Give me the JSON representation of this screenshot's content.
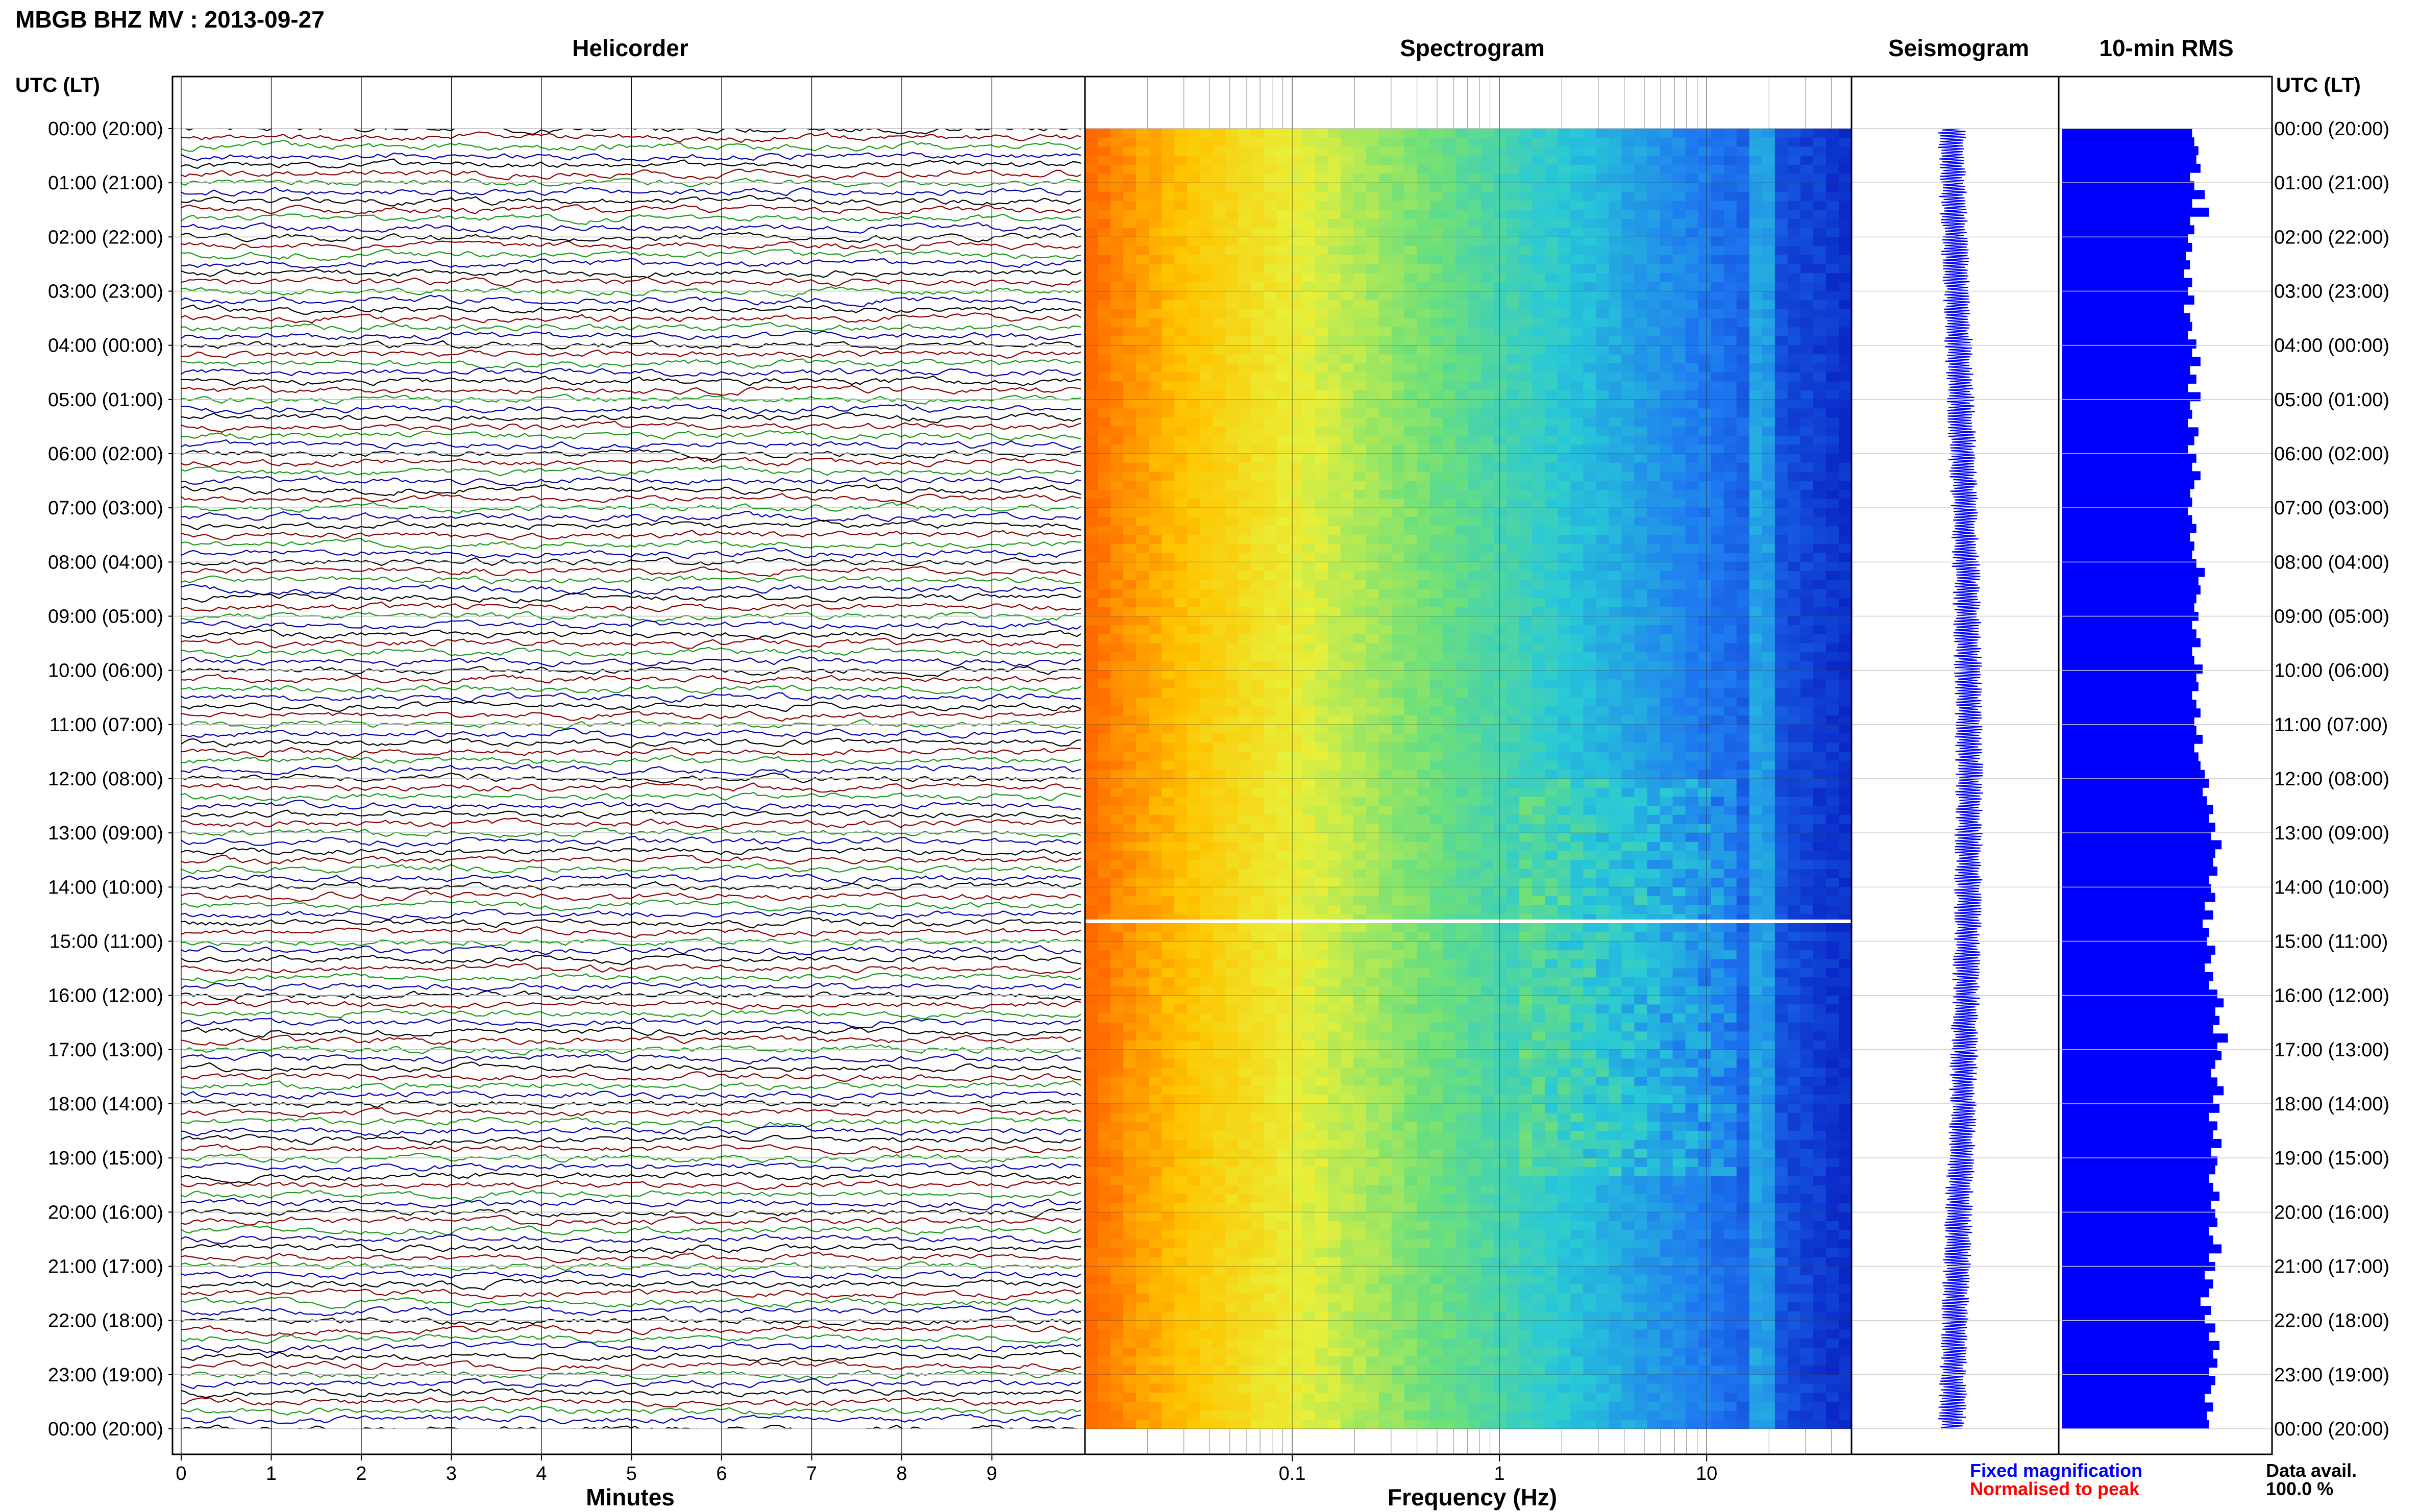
{
  "header": {
    "station": "MBGB BHZ MV : 2013-09-27",
    "utc_label_left": "UTC (LT)",
    "utc_label_right": "UTC (LT)"
  },
  "panels": {
    "helicorder_title": "Helicorder",
    "spectrogram_title": "Spectrogram",
    "seismogram_title": "Seismogram",
    "rms_title": "10-min RMS"
  },
  "footer": {
    "fixed_magnification": "Fixed magnification",
    "normalised_to_peak": "Normalised to peak",
    "data_avail_label": "Data avail.",
    "data_avail_value": "100.0 %"
  },
  "colors": {
    "trace_cycle": [
      "#000000",
      "#8b0000",
      "#1a9a1a",
      "#0000b4"
    ],
    "rms_bar": "#0000ff",
    "seismogram": "#0000ff",
    "fixed_magnification": "#0000ff",
    "normalised_to_peak": "#ff0000"
  },
  "chart_data": [
    {
      "type": "line",
      "title": "Helicorder",
      "xlabel": "Minutes",
      "ylabel": "UTC (LT)",
      "x_ticks": [
        "0",
        "1",
        "2",
        "3",
        "4",
        "5",
        "6",
        "7",
        "8",
        "9"
      ],
      "xlim": [
        0,
        10
      ],
      "rows_per_hour": 6,
      "hours": 24,
      "y_ticks": [
        "00:00 (20:00)",
        "01:00 (21:00)",
        "02:00 (22:00)",
        "03:00 (23:00)",
        "04:00 (00:00)",
        "05:00 (01:00)",
        "06:00 (02:00)",
        "07:00 (03:00)",
        "08:00 (04:00)",
        "09:00 (05:00)",
        "10:00 (06:00)",
        "11:00 (07:00)",
        "12:00 (08:00)",
        "13:00 (09:00)",
        "14:00 (10:00)",
        "15:00 (11:00)",
        "16:00 (12:00)",
        "17:00 (13:00)",
        "18:00 (14:00)",
        "19:00 (15:00)",
        "20:00 (16:00)",
        "21:00 (17:00)",
        "22:00 (18:00)",
        "23:00 (19:00)",
        "00:00 (20:00)"
      ]
    },
    {
      "type": "heatmap",
      "title": "Spectrogram",
      "xlabel": "Frequency (Hz)",
      "x_scale": "log",
      "xlim": [
        0.01,
        50
      ],
      "x_ticks": [
        "0.1",
        "1",
        "10"
      ],
      "colormap": [
        "#ff6a00",
        "#ffc400",
        "#e8f03a",
        "#6ee07a",
        "#28c8d8",
        "#1e78f0",
        "#0a28c8"
      ]
    },
    {
      "type": "line",
      "title": "Seismogram"
    },
    {
      "type": "bar",
      "title": "10-min RMS",
      "orientation": "horizontal",
      "values": [
        0.62,
        0.63,
        0.65,
        0.64,
        0.66,
        0.61,
        0.63,
        0.68,
        0.62,
        0.7,
        0.61,
        0.63,
        0.6,
        0.62,
        0.59,
        0.61,
        0.58,
        0.62,
        0.6,
        0.63,
        0.58,
        0.61,
        0.62,
        0.6,
        0.64,
        0.62,
        0.66,
        0.61,
        0.64,
        0.6,
        0.66,
        0.61,
        0.62,
        0.6,
        0.65,
        0.63,
        0.6,
        0.64,
        0.62,
        0.66,
        0.63,
        0.61,
        0.62,
        0.6,
        0.62,
        0.64,
        0.61,
        0.63,
        0.62,
        0.64,
        0.68,
        0.65,
        0.66,
        0.64,
        0.63,
        0.65,
        0.62,
        0.64,
        0.66,
        0.62,
        0.63,
        0.67,
        0.64,
        0.65,
        0.62,
        0.64,
        0.66,
        0.63,
        0.64,
        0.67,
        0.63,
        0.65,
        0.66,
        0.68,
        0.7,
        0.67,
        0.69,
        0.72,
        0.7,
        0.73,
        0.71,
        0.76,
        0.73,
        0.72,
        0.74,
        0.7,
        0.71,
        0.73,
        0.68,
        0.72,
        0.67,
        0.7,
        0.69,
        0.73,
        0.71,
        0.68,
        0.72,
        0.7,
        0.74,
        0.77,
        0.73,
        0.75,
        0.72,
        0.79,
        0.74,
        0.76,
        0.73,
        0.71,
        0.74,
        0.77,
        0.72,
        0.75,
        0.7,
        0.74,
        0.72,
        0.76,
        0.71,
        0.74,
        0.73,
        0.7,
        0.72,
        0.75,
        0.71,
        0.73,
        0.74,
        0.7,
        0.72,
        0.76,
        0.7,
        0.73,
        0.68,
        0.72,
        0.7,
        0.66,
        0.71,
        0.68,
        0.73,
        0.7,
        0.75,
        0.72,
        0.74,
        0.7,
        0.73,
        0.71,
        0.68,
        0.72,
        0.69,
        0.7
      ]
    }
  ]
}
